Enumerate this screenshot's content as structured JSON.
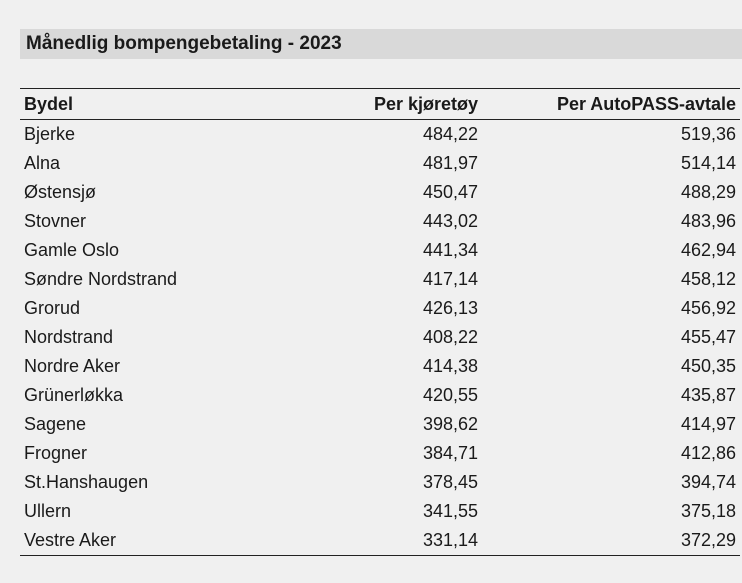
{
  "title": "Månedlig bompengebetaling - 2023",
  "table": {
    "headers": [
      "Bydel",
      "Per kjøretøy",
      "Per AutoPASS-avtale"
    ],
    "rows": [
      [
        "Bjerke",
        "484,22",
        "519,36"
      ],
      [
        "Alna",
        "481,97",
        "514,14"
      ],
      [
        "Østensjø",
        "450,47",
        "488,29"
      ],
      [
        "Stovner",
        "443,02",
        "483,96"
      ],
      [
        "Gamle Oslo",
        "441,34",
        "462,94"
      ],
      [
        "Søndre Nordstrand",
        "417,14",
        "458,12"
      ],
      [
        "Grorud",
        "426,13",
        "456,92"
      ],
      [
        "Nordstrand",
        "408,22",
        "455,47"
      ],
      [
        "Nordre Aker",
        "414,38",
        "450,35"
      ],
      [
        "Grünerløkka",
        "420,55",
        "435,87"
      ],
      [
        "Sagene",
        "398,62",
        "414,97"
      ],
      [
        "Frogner",
        "384,71",
        "412,86"
      ],
      [
        "St.Hanshaugen",
        "378,45",
        "394,74"
      ],
      [
        "Ullern",
        "341,55",
        "375,18"
      ],
      [
        "Vestre Aker",
        "331,14",
        "372,29"
      ]
    ]
  },
  "colors": {
    "background": "#f0f0f0",
    "title_band": "#d9d9d9",
    "text": "#1a1a1a",
    "rule": "#222222"
  }
}
